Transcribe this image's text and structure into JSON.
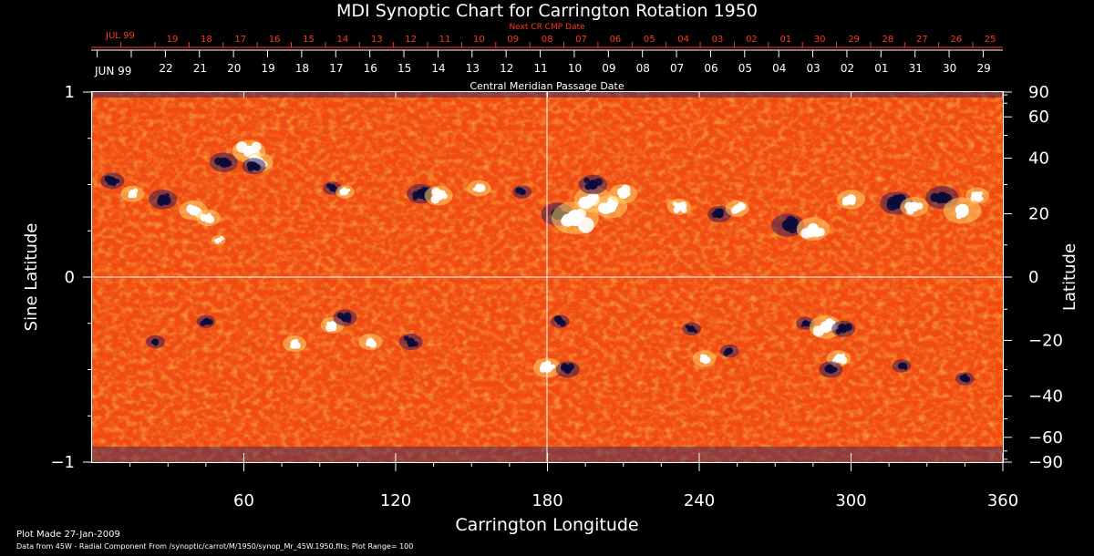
{
  "chart_data": {
    "type": "heatmap",
    "title": "MDI Synoptic Chart for Carrington Rotation 1950",
    "xlabel": "Carrington Longitude",
    "ylabel_left": "Sine Latitude",
    "ylabel_right": "Latitude",
    "xlim": [
      0,
      360
    ],
    "ylim": [
      -1,
      1
    ],
    "x_ticks": [
      60,
      120,
      180,
      240,
      300,
      360
    ],
    "y_ticks_left": [
      1,
      0,
      -1
    ],
    "y_ticks_right": [
      90,
      60,
      40,
      20,
      0,
      -20,
      -40,
      -60,
      -90
    ],
    "cmp_axis_title": "Central Meridian Passage Date",
    "cmp_month_label": "JUN 99",
    "cmp_dates": [
      "22",
      "21",
      "20",
      "19",
      "18",
      "17",
      "16",
      "15",
      "14",
      "13",
      "12",
      "11",
      "10",
      "09",
      "08",
      "07",
      "06",
      "05",
      "04",
      "03",
      "02",
      "01",
      "31",
      "30",
      "29"
    ],
    "next_axis_title": "Next CR CMP Date",
    "next_month_label": "JUL 99",
    "next_dates": [
      "19",
      "18",
      "17",
      "16",
      "15",
      "14",
      "13",
      "12",
      "11",
      "10",
      "09",
      "08",
      "07",
      "06",
      "05",
      "04",
      "03",
      "02",
      "01",
      "30",
      "29",
      "28",
      "27",
      "26",
      "25"
    ],
    "footer_line1": "Plot Made 27-Jan-2009",
    "footer_line2": "Data from 45W - Radial Component From /synoptic/carrot/M/1950/synop_Mr_45W.1950.fits; Plot Range= 100",
    "colors": {
      "background": "#ff5a12",
      "positive": "#ffffff",
      "negative": "#0b0b3a",
      "axis": "#ffffff",
      "secondary_axis": "#ff3a1a"
    },
    "active_regions": [
      {
        "lon": 8,
        "sinlat": 0.52,
        "pol": -1,
        "r": 5
      },
      {
        "lon": 16,
        "sinlat": 0.45,
        "pol": 1,
        "r": 5
      },
      {
        "lon": 28,
        "sinlat": 0.42,
        "pol": -1,
        "r": 6
      },
      {
        "lon": 40,
        "sinlat": 0.36,
        "pol": 1,
        "r": 6
      },
      {
        "lon": 46,
        "sinlat": 0.32,
        "pol": 1,
        "r": 5
      },
      {
        "lon": 50,
        "sinlat": 0.2,
        "pol": 1,
        "r": 3
      },
      {
        "lon": 52,
        "sinlat": 0.62,
        "pol": -1,
        "r": 6
      },
      {
        "lon": 62,
        "sinlat": 0.68,
        "pol": 1,
        "r": 7
      },
      {
        "lon": 66,
        "sinlat": 0.62,
        "pol": 1,
        "r": 6
      },
      {
        "lon": 64,
        "sinlat": 0.6,
        "pol": -1,
        "r": 5
      },
      {
        "lon": 95,
        "sinlat": 0.48,
        "pol": -1,
        "r": 4
      },
      {
        "lon": 100,
        "sinlat": 0.46,
        "pol": 1,
        "r": 4
      },
      {
        "lon": 130,
        "sinlat": 0.45,
        "pol": -1,
        "r": 6
      },
      {
        "lon": 137,
        "sinlat": 0.44,
        "pol": 1,
        "r": 6
      },
      {
        "lon": 153,
        "sinlat": 0.48,
        "pol": 1,
        "r": 5
      },
      {
        "lon": 170,
        "sinlat": 0.46,
        "pol": -1,
        "r": 4
      },
      {
        "lon": 184,
        "sinlat": 0.34,
        "pol": -1,
        "r": 7
      },
      {
        "lon": 191,
        "sinlat": 0.32,
        "pol": 1,
        "r": 10
      },
      {
        "lon": 198,
        "sinlat": 0.42,
        "pol": 1,
        "r": 8
      },
      {
        "lon": 198,
        "sinlat": 0.5,
        "pol": -1,
        "r": 6
      },
      {
        "lon": 205,
        "sinlat": 0.38,
        "pol": 1,
        "r": 7
      },
      {
        "lon": 210,
        "sinlat": 0.45,
        "pol": 1,
        "r": 6
      },
      {
        "lon": 232,
        "sinlat": 0.38,
        "pol": 1,
        "r": 5
      },
      {
        "lon": 248,
        "sinlat": 0.34,
        "pol": -1,
        "r": 5
      },
      {
        "lon": 255,
        "sinlat": 0.37,
        "pol": 1,
        "r": 5
      },
      {
        "lon": 275,
        "sinlat": 0.28,
        "pol": -1,
        "r": 7
      },
      {
        "lon": 285,
        "sinlat": 0.26,
        "pol": 1,
        "r": 7
      },
      {
        "lon": 300,
        "sinlat": 0.42,
        "pol": 1,
        "r": 6
      },
      {
        "lon": 318,
        "sinlat": 0.4,
        "pol": -1,
        "r": 7
      },
      {
        "lon": 325,
        "sinlat": 0.38,
        "pol": 1,
        "r": 6
      },
      {
        "lon": 336,
        "sinlat": 0.43,
        "pol": -1,
        "r": 7
      },
      {
        "lon": 344,
        "sinlat": 0.36,
        "pol": 1,
        "r": 8
      },
      {
        "lon": 350,
        "sinlat": 0.44,
        "pol": 1,
        "r": 5
      },
      {
        "lon": 45,
        "sinlat": -0.24,
        "pol": -1,
        "r": 4
      },
      {
        "lon": 25,
        "sinlat": -0.35,
        "pol": -1,
        "r": 4
      },
      {
        "lon": 80,
        "sinlat": -0.36,
        "pol": 1,
        "r": 5
      },
      {
        "lon": 95,
        "sinlat": -0.26,
        "pol": 1,
        "r": 5
      },
      {
        "lon": 100,
        "sinlat": -0.22,
        "pol": -1,
        "r": 5
      },
      {
        "lon": 110,
        "sinlat": -0.35,
        "pol": 1,
        "r": 5
      },
      {
        "lon": 126,
        "sinlat": -0.35,
        "pol": -1,
        "r": 5
      },
      {
        "lon": 180,
        "sinlat": -0.49,
        "pol": 1,
        "r": 6
      },
      {
        "lon": 185,
        "sinlat": -0.24,
        "pol": -1,
        "r": 4
      },
      {
        "lon": 188,
        "sinlat": -0.5,
        "pol": -1,
        "r": 5
      },
      {
        "lon": 237,
        "sinlat": -0.28,
        "pol": -1,
        "r": 4
      },
      {
        "lon": 242,
        "sinlat": -0.44,
        "pol": 1,
        "r": 5
      },
      {
        "lon": 252,
        "sinlat": -0.4,
        "pol": -1,
        "r": 4
      },
      {
        "lon": 282,
        "sinlat": -0.25,
        "pol": -1,
        "r": 4
      },
      {
        "lon": 290,
        "sinlat": -0.27,
        "pol": 1,
        "r": 7
      },
      {
        "lon": 297,
        "sinlat": -0.28,
        "pol": -1,
        "r": 5
      },
      {
        "lon": 295,
        "sinlat": -0.44,
        "pol": 1,
        "r": 5
      },
      {
        "lon": 292,
        "sinlat": -0.5,
        "pol": -1,
        "r": 5
      },
      {
        "lon": 320,
        "sinlat": -0.48,
        "pol": -1,
        "r": 4
      },
      {
        "lon": 345,
        "sinlat": -0.55,
        "pol": -1,
        "r": 4
      }
    ]
  }
}
